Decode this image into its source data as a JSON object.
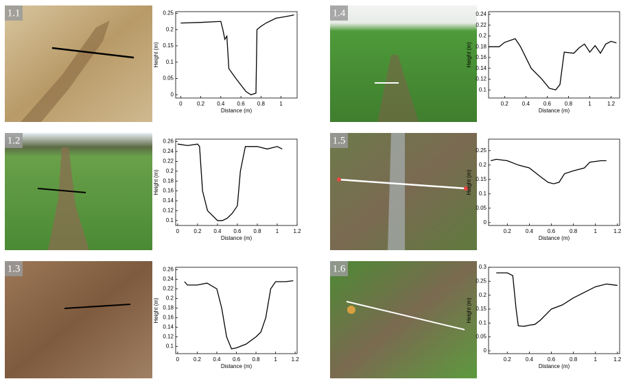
{
  "chart_data": [
    {
      "type": "line",
      "label": "1.1",
      "xlabel": "Distance (m)",
      "ylabel": "Height (m)",
      "color": "#000000",
      "x": [
        0,
        0.2,
        0.4,
        0.42,
        0.44,
        0.46,
        0.48,
        0.55,
        0.6,
        0.65,
        0.7,
        0.75,
        0.76,
        0.8,
        0.85,
        0.95,
        1.05,
        1.13
      ],
      "values": [
        0.22,
        0.222,
        0.225,
        0.2,
        0.17,
        0.18,
        0.08,
        0.05,
        0.03,
        0.01,
        0,
        0.005,
        0.2,
        0.21,
        0.22,
        0.235,
        0.24,
        0.245
      ],
      "xlim": [
        -0.05,
        1.16
      ],
      "ylim": [
        -0.01,
        0.255
      ],
      "xticks": [
        0,
        0.2,
        0.4,
        0.6,
        0.8,
        1
      ],
      "yticks": [
        0,
        0.05,
        0.1,
        0.15,
        0.2,
        0.25
      ]
    },
    {
      "type": "line",
      "label": "1.2",
      "xlabel": "Distance (m)",
      "ylabel": "Height (m)",
      "color": "#000000",
      "x": [
        0,
        0.1,
        0.2,
        0.22,
        0.25,
        0.3,
        0.35,
        0.4,
        0.45,
        0.5,
        0.55,
        0.6,
        0.63,
        0.68,
        0.8,
        0.9,
        1.0,
        1.05
      ],
      "values": [
        0.255,
        0.252,
        0.255,
        0.25,
        0.16,
        0.12,
        0.11,
        0.1,
        0.1,
        0.105,
        0.115,
        0.13,
        0.2,
        0.25,
        0.25,
        0.245,
        0.25,
        0.245
      ],
      "xlim": [
        -0.02,
        1.2
      ],
      "ylim": [
        0.09,
        0.265
      ],
      "xticks": [
        0,
        0.2,
        0.4,
        0.6,
        0.8,
        1,
        1.2
      ],
      "yticks": [
        0.1,
        0.12,
        0.14,
        0.16,
        0.18,
        0.2,
        0.22,
        0.24,
        0.26
      ]
    },
    {
      "type": "line",
      "label": "1.3",
      "xlabel": "Distance (m)",
      "ylabel": "Height (m)",
      "color": "#000000",
      "x": [
        0.07,
        0.1,
        0.2,
        0.3,
        0.4,
        0.45,
        0.5,
        0.55,
        0.6,
        0.7,
        0.8,
        0.85,
        0.9,
        0.95,
        1.0,
        1.1,
        1.18
      ],
      "values": [
        0.235,
        0.228,
        0.228,
        0.232,
        0.22,
        0.18,
        0.12,
        0.095,
        0.097,
        0.105,
        0.12,
        0.13,
        0.16,
        0.22,
        0.235,
        0.235,
        0.237
      ],
      "xlim": [
        -0.02,
        1.22
      ],
      "ylim": [
        0.085,
        0.265
      ],
      "xticks": [
        0,
        0.2,
        0.4,
        0.6,
        0.8,
        1,
        1.2
      ],
      "yticks": [
        0.1,
        0.12,
        0.14,
        0.16,
        0.18,
        0.2,
        0.22,
        0.24,
        0.26
      ]
    },
    {
      "type": "line",
      "label": "1.4",
      "xlabel": "Distance (m)",
      "ylabel": "Height (m)",
      "color": "#000000",
      "x": [
        0.05,
        0.15,
        0.2,
        0.3,
        0.35,
        0.45,
        0.55,
        0.62,
        0.68,
        0.72,
        0.76,
        0.85,
        0.9,
        0.95,
        1.0,
        1.05,
        1.1,
        1.15,
        1.2,
        1.25
      ],
      "values": [
        0.18,
        0.18,
        0.188,
        0.195,
        0.18,
        0.14,
        0.12,
        0.103,
        0.1,
        0.11,
        0.17,
        0.168,
        0.178,
        0.185,
        0.17,
        0.182,
        0.168,
        0.185,
        0.19,
        0.187
      ],
      "xlim": [
        0.05,
        1.28
      ],
      "ylim": [
        0.085,
        0.245
      ],
      "xticks": [
        0.2,
        0.4,
        0.6,
        0.8,
        1,
        1.2
      ],
      "yticks": [
        0.1,
        0.12,
        0.14,
        0.16,
        0.18,
        0.2,
        0.22,
        0.24
      ]
    },
    {
      "type": "line",
      "label": "1.5",
      "xlabel": "Distance (m)",
      "ylabel": "Height (m)",
      "color": "#000000",
      "x": [
        0.05,
        0.1,
        0.2,
        0.3,
        0.4,
        0.5,
        0.57,
        0.62,
        0.67,
        0.72,
        0.8,
        0.9,
        0.95,
        1.05,
        1.1
      ],
      "values": [
        0.215,
        0.22,
        0.215,
        0.2,
        0.19,
        0.16,
        0.14,
        0.135,
        0.14,
        0.17,
        0.18,
        0.19,
        0.21,
        0.215,
        0.215
      ],
      "xlim": [
        0.03,
        1.22
      ],
      "ylim": [
        -0.01,
        0.29
      ],
      "xticks": [
        0.2,
        0.4,
        0.6,
        0.8,
        1,
        1.2
      ],
      "yticks": [
        0,
        0.05,
        0.1,
        0.15,
        0.2,
        0.25
      ]
    },
    {
      "type": "line",
      "label": "1.6",
      "xlabel": "Distance (m)",
      "ylabel": "Height (m)",
      "color": "#000000",
      "x": [
        0.1,
        0.2,
        0.25,
        0.28,
        0.3,
        0.35,
        0.4,
        0.45,
        0.5,
        0.6,
        0.7,
        0.8,
        0.9,
        1.0,
        1.1,
        1.2
      ],
      "values": [
        0.28,
        0.28,
        0.27,
        0.15,
        0.09,
        0.088,
        0.092,
        0.095,
        0.11,
        0.15,
        0.165,
        0.19,
        0.21,
        0.23,
        0.24,
        0.235
      ],
      "xlim": [
        0.03,
        1.22
      ],
      "ylim": [
        -0.01,
        0.3
      ],
      "xticks": [
        0.2,
        0.4,
        0.6,
        0.8,
        1,
        1.2
      ],
      "yticks": [
        0,
        0.05,
        0.1,
        0.15,
        0.2,
        0.25,
        0.3
      ]
    }
  ]
}
